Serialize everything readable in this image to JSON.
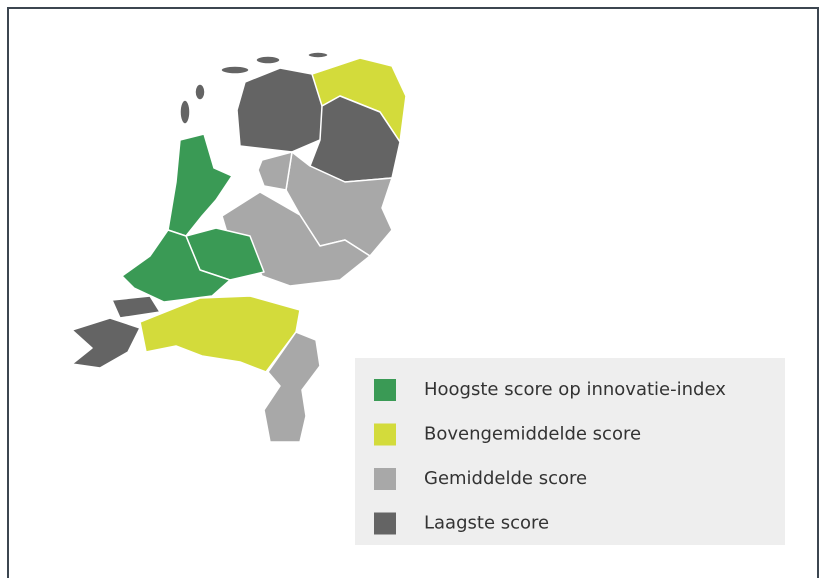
{
  "legend": {
    "items": [
      {
        "label": "Hoogste score op innovatie-index",
        "color": "#3a9a55"
      },
      {
        "label": "Bovengemiddelde score",
        "color": "#d3db3b"
      },
      {
        "label": "Gemiddelde score",
        "color": "#a8a8a8"
      },
      {
        "label": "Laagste score",
        "color": "#646464"
      }
    ]
  }
}
